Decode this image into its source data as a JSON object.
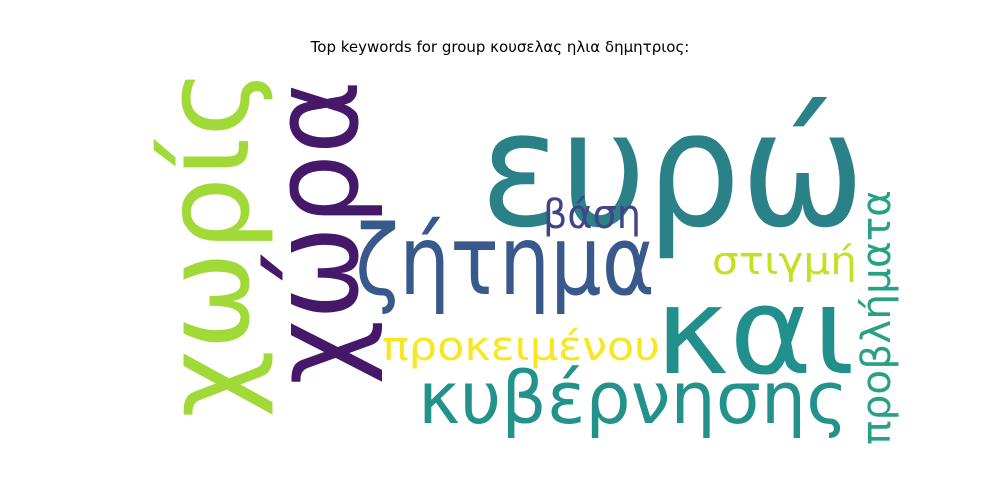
{
  "title": "Top keywords for group κουσελας ηλια δημητριος:",
  "words": [
    {
      "text": "ευρώ",
      "color": "#2a8187"
    },
    {
      "text": "χωρίς",
      "color": "#a1da38"
    },
    {
      "text": "χώρα",
      "color": "#45186a"
    },
    {
      "text": "ζήτημα",
      "color": "#39588c"
    },
    {
      "text": "και",
      "color": "#218f8c"
    },
    {
      "text": "κυβέρνησης",
      "color": "#22928b"
    },
    {
      "text": "προκειμένου",
      "color": "#f8e621"
    },
    {
      "text": "βάση",
      "color": "#414587"
    },
    {
      "text": "στιγμή",
      "color": "#c5df22"
    },
    {
      "text": "προβλήματα",
      "color": "#27a085"
    }
  ]
}
